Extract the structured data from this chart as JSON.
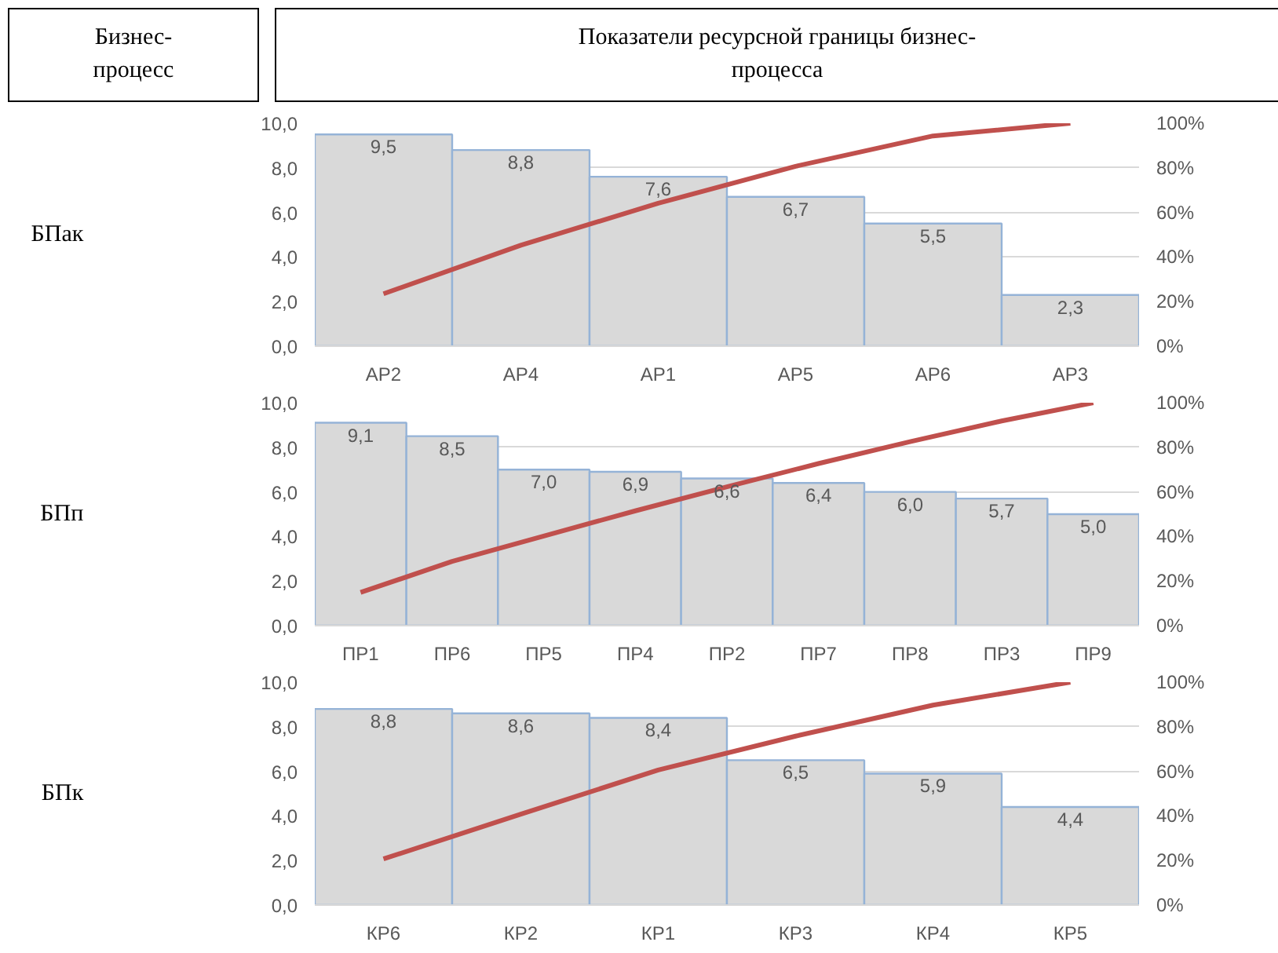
{
  "chart_data": [
    {
      "type": "bar",
      "ylabel": "БПак",
      "annotations": [
        "Бизнес-процесс",
        "Показатели ресурсной границы бизнес-процесса"
      ],
      "categories": [
        "АР2",
        "АР4",
        "АР1",
        "АР5",
        "АР6",
        "АР3"
      ],
      "grid": "y",
      "ylim": [
        0,
        10
      ],
      "yticks": [
        {
          "value": 0,
          "label": "0,0"
        },
        {
          "value": 2,
          "label": "2,0"
        },
        {
          "value": 4,
          "label": "4,0"
        },
        {
          "value": 6,
          "label": "6,0"
        },
        {
          "value": 8,
          "label": "8,0"
        },
        {
          "value": 10,
          "label": "10,0"
        }
      ],
      "y2lim": [
        0,
        100
      ],
      "y2ticks": [
        {
          "value": 0,
          "label": "0%"
        },
        {
          "value": 20,
          "label": "20%"
        },
        {
          "value": 40,
          "label": "40%"
        },
        {
          "value": 60,
          "label": "60%"
        },
        {
          "value": 80,
          "label": "80%"
        },
        {
          "value": 100,
          "label": "100%"
        }
      ],
      "series": [
        {
          "color": "#d9d9d9",
          "values": [
            9.5,
            8.8,
            7.6,
            6.7,
            5.5,
            2.3
          ],
          "value_labels": [
            "9,5",
            "8,8",
            "7,6",
            "6,7",
            "5,5",
            "2,3"
          ]
        },
        {
          "type": "line",
          "axis": "y2",
          "color": "#c0504d",
          "values": [
            23.5,
            45.3,
            64.1,
            80.7,
            94.3,
            100
          ]
        }
      ]
    },
    {
      "type": "bar",
      "ylabel": "БПп",
      "categories": [
        "ПР1",
        "ПР6",
        "ПР5",
        "ПР4",
        "ПР2",
        "ПР7",
        "ПР8",
        "ПР3",
        "ПР9"
      ],
      "grid": "y",
      "ylim": [
        0,
        10
      ],
      "yticks": [
        {
          "value": 0,
          "label": "0,0"
        },
        {
          "value": 2,
          "label": "2,0"
        },
        {
          "value": 4,
          "label": "4,0"
        },
        {
          "value": 6,
          "label": "6,0"
        },
        {
          "value": 8,
          "label": "8,0"
        },
        {
          "value": 10,
          "label": "10,0"
        }
      ],
      "y2lim": [
        0,
        100
      ],
      "y2ticks": [
        {
          "value": 0,
          "label": "0%"
        },
        {
          "value": 20,
          "label": "20%"
        },
        {
          "value": 40,
          "label": "40%"
        },
        {
          "value": 60,
          "label": "60%"
        },
        {
          "value": 80,
          "label": "80%"
        },
        {
          "value": 100,
          "label": "100%"
        }
      ],
      "series": [
        {
          "color": "#d9d9d9",
          "values": [
            9.1,
            8.5,
            7.0,
            6.9,
            6.6,
            6.4,
            6.0,
            5.7,
            5.0
          ],
          "value_labels": [
            "9,1",
            "8,5",
            "7,0",
            "6,9",
            "6,6",
            "6,4",
            "6,0",
            "5,7",
            "5,0"
          ]
        },
        {
          "type": "line",
          "axis": "y2",
          "color": "#c0504d",
          "values": [
            14.9,
            28.8,
            40.2,
            51.5,
            62.3,
            72.7,
            82.5,
            91.8,
            100
          ]
        }
      ]
    },
    {
      "type": "bar",
      "ylabel": "БПк",
      "categories": [
        "КР6",
        "КР2",
        "КР1",
        "КР3",
        "КР4",
        "КР5"
      ],
      "grid": "y",
      "ylim": [
        0,
        10
      ],
      "yticks": [
        {
          "value": 0,
          "label": "0,0"
        },
        {
          "value": 2,
          "label": "2,0"
        },
        {
          "value": 4,
          "label": "4,0"
        },
        {
          "value": 6,
          "label": "6,0"
        },
        {
          "value": 8,
          "label": "8,0"
        },
        {
          "value": 10,
          "label": "10,0"
        }
      ],
      "y2lim": [
        0,
        100
      ],
      "y2ticks": [
        {
          "value": 0,
          "label": "0%"
        },
        {
          "value": 20,
          "label": "20%"
        },
        {
          "value": 40,
          "label": "40%"
        },
        {
          "value": 60,
          "label": "60%"
        },
        {
          "value": 80,
          "label": "80%"
        },
        {
          "value": 100,
          "label": "100%"
        }
      ],
      "series": [
        {
          "color": "#d9d9d9",
          "values": [
            8.8,
            8.6,
            8.4,
            6.5,
            5.9,
            4.4
          ],
          "value_labels": [
            "8,8",
            "8,6",
            "8,4",
            "6,5",
            "5,9",
            "4,4"
          ]
        },
        {
          "type": "line",
          "axis": "y2",
          "color": "#c0504d",
          "values": [
            20.7,
            40.8,
            60.6,
            75.8,
            89.7,
            100
          ]
        }
      ]
    }
  ]
}
